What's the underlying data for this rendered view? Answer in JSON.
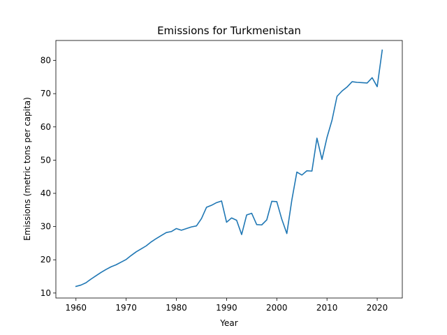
{
  "chart_data": {
    "type": "line",
    "title": "Emissions for Turkmenistan",
    "xlabel": "Year",
    "ylabel": "Emissions (metric tons per capita)",
    "xlim": [
      1956,
      2025
    ],
    "ylim": [
      8.5,
      86
    ],
    "xticks": [
      1960,
      1970,
      1980,
      1990,
      2000,
      2010,
      2020
    ],
    "yticks": [
      10,
      20,
      30,
      40,
      50,
      60,
      70,
      80
    ],
    "grid": false,
    "legend": "none",
    "series": [
      {
        "color": "#1f77b4",
        "x": [
          1960,
          1961,
          1962,
          1963,
          1964,
          1965,
          1966,
          1967,
          1968,
          1969,
          1970,
          1971,
          1972,
          1973,
          1974,
          1975,
          1976,
          1977,
          1978,
          1979,
          1980,
          1981,
          1982,
          1983,
          1984,
          1985,
          1986,
          1987,
          1988,
          1989,
          1990,
          1991,
          1992,
          1993,
          1994,
          1995,
          1996,
          1997,
          1998,
          1999,
          2000,
          2001,
          2002,
          2003,
          2004,
          2005,
          2006,
          2007,
          2008,
          2009,
          2010,
          2011,
          2012,
          2013,
          2014,
          2015,
          2016,
          2017,
          2018,
          2019,
          2020,
          2021
        ],
        "values": [
          12.0,
          12.4,
          13.1,
          14.2,
          15.2,
          16.2,
          17.1,
          17.9,
          18.5,
          19.3,
          20.1,
          21.3,
          22.4,
          23.3,
          24.2,
          25.4,
          26.4,
          27.3,
          28.2,
          28.5,
          29.4,
          28.9,
          29.4,
          29.9,
          30.2,
          32.4,
          35.8,
          36.4,
          37.2,
          37.7,
          31.3,
          32.6,
          31.9,
          27.6,
          33.5,
          34.0,
          30.6,
          30.5,
          32.0,
          37.6,
          37.5,
          32.2,
          27.9,
          38.0,
          46.4,
          45.5,
          46.8,
          46.7,
          56.6,
          50.2,
          56.8,
          62.0,
          69.2,
          70.8,
          72.0,
          73.6,
          73.4,
          73.3,
          73.2,
          74.8,
          72.1,
          83.1
        ]
      }
    ]
  }
}
